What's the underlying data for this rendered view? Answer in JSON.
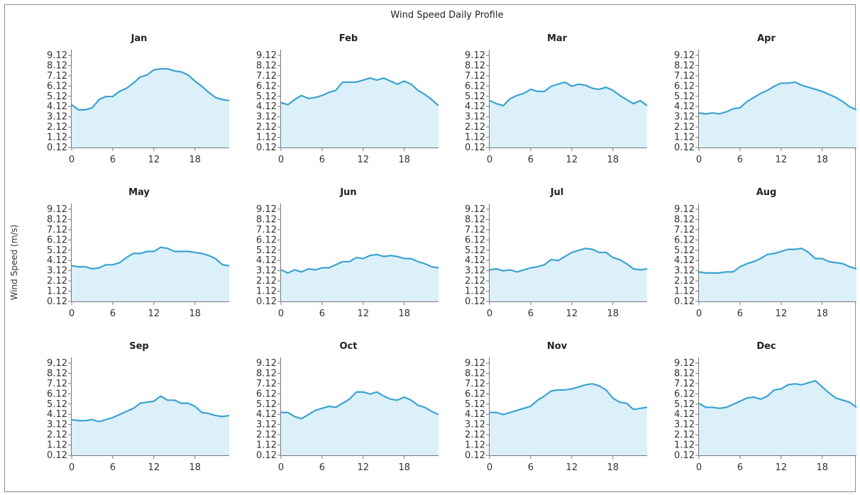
{
  "chart_data": {
    "type": "area",
    "title": "Wind Speed Daily Profile",
    "ylabel": "Wind Speed (m/s)",
    "xlabel": "",
    "x": [
      0,
      1,
      2,
      3,
      4,
      5,
      6,
      7,
      8,
      9,
      10,
      11,
      12,
      13,
      14,
      15,
      16,
      17,
      18,
      19,
      20,
      21,
      22,
      23
    ],
    "xticks": [
      0,
      6,
      12,
      18
    ],
    "yticks": [
      "0.12",
      "1.12",
      "2.12",
      "3.12",
      "4.12",
      "5.12",
      "6.12",
      "7.12",
      "8.12",
      "9.12"
    ],
    "ylim": [
      0.12,
      9.12
    ],
    "grid": false,
    "colors": {
      "line": "#3aa3cf",
      "fill": "#dcf0f9",
      "axis": "#777777"
    },
    "panels": [
      {
        "name": "Jan",
        "values": [
          4.3,
          3.8,
          3.8,
          4.0,
          4.8,
          5.1,
          5.1,
          5.6,
          5.9,
          6.4,
          7.0,
          7.2,
          7.7,
          7.8,
          7.8,
          7.6,
          7.5,
          7.2,
          6.6,
          6.1,
          5.5,
          5.0,
          4.8,
          4.7
        ]
      },
      {
        "name": "Feb",
        "values": [
          4.5,
          4.3,
          4.8,
          5.2,
          4.9,
          5.0,
          5.2,
          5.5,
          5.7,
          6.5,
          6.5,
          6.5,
          6.7,
          6.9,
          6.7,
          6.9,
          6.6,
          6.3,
          6.6,
          6.3,
          5.7,
          5.3,
          4.8,
          4.2
        ]
      },
      {
        "name": "Mar",
        "values": [
          4.7,
          4.4,
          4.2,
          4.9,
          5.2,
          5.4,
          5.8,
          5.6,
          5.6,
          6.1,
          6.3,
          6.5,
          6.1,
          6.3,
          6.2,
          5.9,
          5.8,
          6.0,
          5.7,
          5.2,
          4.8,
          4.4,
          4.7,
          4.2
        ]
      },
      {
        "name": "Apr",
        "values": [
          3.5,
          3.4,
          3.5,
          3.4,
          3.6,
          3.9,
          4.0,
          4.6,
          5.0,
          5.4,
          5.7,
          6.1,
          6.4,
          6.4,
          6.5,
          6.2,
          6.0,
          5.8,
          5.6,
          5.3,
          5.0,
          4.6,
          4.1,
          3.8
        ]
      },
      {
        "name": "May",
        "values": [
          3.6,
          3.5,
          3.5,
          3.3,
          3.4,
          3.7,
          3.7,
          3.9,
          4.4,
          4.8,
          4.8,
          5.0,
          5.0,
          5.4,
          5.3,
          5.0,
          5.0,
          5.0,
          4.9,
          4.8,
          4.6,
          4.3,
          3.7,
          3.6
        ]
      },
      {
        "name": "Jun",
        "values": [
          3.2,
          2.9,
          3.2,
          3.0,
          3.3,
          3.2,
          3.4,
          3.4,
          3.7,
          4.0,
          4.0,
          4.4,
          4.3,
          4.6,
          4.7,
          4.5,
          4.6,
          4.5,
          4.3,
          4.3,
          4.0,
          3.8,
          3.5,
          3.4
        ]
      },
      {
        "name": "Jul",
        "values": [
          3.2,
          3.3,
          3.1,
          3.2,
          3.0,
          3.2,
          3.4,
          3.5,
          3.7,
          4.2,
          4.1,
          4.5,
          4.9,
          5.1,
          5.3,
          5.2,
          4.9,
          4.9,
          4.4,
          4.2,
          3.8,
          3.3,
          3.2,
          3.3
        ]
      },
      {
        "name": "Aug",
        "values": [
          3.0,
          2.9,
          2.9,
          2.9,
          3.0,
          3.0,
          3.5,
          3.8,
          4.0,
          4.3,
          4.7,
          4.8,
          5.0,
          5.2,
          5.2,
          5.3,
          4.9,
          4.3,
          4.3,
          4.0,
          3.9,
          3.8,
          3.5,
          3.3
        ]
      },
      {
        "name": "Sep",
        "values": [
          3.6,
          3.5,
          3.5,
          3.6,
          3.4,
          3.6,
          3.8,
          4.1,
          4.4,
          4.7,
          5.2,
          5.3,
          5.4,
          5.9,
          5.5,
          5.5,
          5.2,
          5.2,
          4.9,
          4.3,
          4.2,
          4.0,
          3.9,
          4.0
        ]
      },
      {
        "name": "Oct",
        "values": [
          4.3,
          4.3,
          3.9,
          3.7,
          4.1,
          4.5,
          4.7,
          4.9,
          4.8,
          5.2,
          5.6,
          6.3,
          6.3,
          6.1,
          6.3,
          5.9,
          5.6,
          5.5,
          5.8,
          5.5,
          5.0,
          4.8,
          4.4,
          4.1
        ]
      },
      {
        "name": "Nov",
        "values": [
          4.3,
          4.3,
          4.1,
          4.3,
          4.5,
          4.7,
          4.9,
          5.5,
          5.9,
          6.4,
          6.5,
          6.5,
          6.6,
          6.8,
          7.0,
          7.1,
          6.9,
          6.5,
          5.7,
          5.3,
          5.2,
          4.6,
          4.7,
          4.8
        ]
      },
      {
        "name": "Dec",
        "values": [
          5.2,
          4.8,
          4.8,
          4.7,
          4.8,
          5.1,
          5.4,
          5.7,
          5.8,
          5.6,
          5.9,
          6.5,
          6.6,
          7.0,
          7.1,
          7.0,
          7.2,
          7.4,
          6.8,
          6.2,
          5.7,
          5.5,
          5.3,
          4.8
        ]
      }
    ]
  }
}
